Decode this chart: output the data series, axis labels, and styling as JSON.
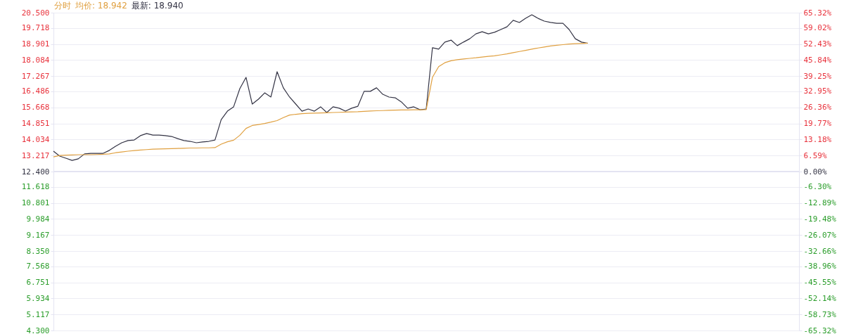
{
  "chart_data": {
    "type": "line",
    "title": "分时",
    "annotations": [
      "均价: 18.942",
      "最新: 18.940"
    ],
    "categories": [
      null,
      null,
      null,
      null,
      null,
      null,
      null,
      null,
      null,
      null,
      null,
      null,
      null,
      null,
      null,
      null,
      null,
      null,
      null,
      null,
      null,
      null,
      null,
      null,
      null,
      null,
      null,
      null,
      null,
      null,
      null,
      null,
      null,
      null,
      null,
      null,
      null,
      null,
      null,
      null,
      null,
      null,
      null,
      null,
      null,
      null,
      null,
      null,
      null,
      null,
      null,
      null,
      null,
      null,
      null,
      null,
      null,
      null,
      null,
      null,
      null,
      null,
      null,
      null,
      null,
      null,
      null,
      null,
      null,
      null,
      null,
      null,
      null,
      null,
      null,
      null,
      null,
      null,
      null,
      null,
      null,
      null,
      null,
      null,
      null,
      null,
      null,
      null,
      null,
      null,
      null,
      null,
      null,
      null,
      null,
      null,
      null,
      null,
      null,
      null,
      null,
      null,
      null,
      null,
      null,
      null,
      null,
      null,
      null,
      null,
      null,
      null,
      null,
      null,
      null,
      null,
      null,
      null,
      null,
      null,
      null
    ],
    "series": [
      {
        "color": "#333344",
        "values": [
          13.44,
          13.19,
          13.08,
          12.97,
          13.05,
          13.3,
          13.33,
          13.33,
          13.33,
          13.48,
          13.69,
          13.87,
          13.98,
          14.01,
          14.23,
          14.34,
          14.26,
          14.26,
          14.23,
          14.19,
          14.08,
          13.98,
          13.94,
          13.87,
          13.91,
          13.94,
          14.01,
          15.05,
          15.48,
          15.7,
          16.63,
          17.2,
          15.84,
          16.09,
          16.41,
          16.2,
          17.49,
          16.67,
          16.2,
          15.84,
          15.48,
          15.59,
          15.48,
          15.7,
          15.41,
          15.7,
          15.63,
          15.48,
          15.63,
          15.73,
          16.49,
          16.49,
          16.67,
          16.34,
          16.2,
          16.16,
          15.95,
          15.63,
          15.7,
          15.55,
          15.59,
          18.71,
          18.64,
          19.0,
          19.1,
          18.82,
          19.0,
          19.17,
          19.42,
          19.53,
          19.42,
          19.5,
          19.64,
          19.78,
          20.11,
          20.0,
          20.21,
          20.39,
          20.21,
          20.07,
          20.0,
          19.96,
          19.96,
          19.64,
          19.17,
          19.0,
          18.94,
          null,
          null,
          null,
          null,
          null,
          null,
          null,
          null,
          null,
          null,
          null,
          null,
          null,
          null,
          null,
          null,
          null,
          null,
          null,
          null,
          null,
          null,
          null,
          null,
          null,
          null,
          null,
          null,
          null,
          null,
          null,
          null,
          null,
          null
        ]
      },
      {
        "color": "#e0a040",
        "values": [
          13.15,
          13.22,
          13.24,
          13.25,
          13.26,
          13.26,
          13.26,
          13.27,
          13.28,
          13.3,
          13.36,
          13.4,
          13.44,
          13.47,
          13.5,
          13.52,
          13.54,
          13.55,
          13.56,
          13.57,
          13.58,
          13.59,
          13.6,
          13.6,
          13.61,
          13.61,
          13.62,
          13.8,
          13.92,
          14.0,
          14.25,
          14.6,
          14.75,
          14.8,
          14.85,
          14.92,
          15.0,
          15.15,
          15.28,
          15.32,
          15.35,
          15.37,
          15.38,
          15.39,
          15.4,
          15.41,
          15.42,
          15.43,
          15.44,
          15.45,
          15.47,
          15.49,
          15.5,
          15.51,
          15.52,
          15.53,
          15.54,
          15.54,
          15.55,
          15.55,
          15.56,
          17.2,
          17.75,
          17.95,
          18.05,
          18.1,
          18.14,
          18.17,
          18.2,
          18.24,
          18.27,
          18.3,
          18.35,
          18.4,
          18.46,
          18.52,
          18.58,
          18.64,
          18.7,
          18.75,
          18.8,
          18.84,
          18.87,
          18.9,
          18.92,
          18.93,
          18.942,
          null,
          null,
          null,
          null,
          null,
          null,
          null,
          null,
          null,
          null,
          null,
          null,
          null,
          null,
          null,
          null,
          null,
          null,
          null,
          null,
          null,
          null,
          null,
          null,
          null,
          null,
          null,
          null,
          null,
          null,
          null,
          null,
          null,
          null
        ]
      }
    ],
    "ylim": [
      4.3,
      20.5
    ],
    "yticks": [
      {
        "value": 4.3,
        "label": "4.300"
      },
      5.117,
      5.934,
      6.751,
      7.568,
      {
        "value": 8.35,
        "label": "8.350"
      },
      9.167,
      9.984,
      10.801,
      11.618,
      {
        "value": 12.4,
        "label": "12.400"
      },
      13.217,
      14.034,
      14.851,
      15.668,
      16.486,
      17.267,
      18.084,
      18.901,
      19.718,
      {
        "value": 20.5,
        "label": "20.500"
      }
    ],
    "y2lim": [
      -65.32,
      65.32
    ],
    "y2ticks": [
      {
        "value": -65.32,
        "label": "-65.32%"
      },
      {
        "value": -58.73,
        "label": "-58.73%"
      },
      {
        "value": -52.14,
        "label": "-52.14%"
      },
      {
        "value": -45.55,
        "label": "-45.55%"
      },
      {
        "value": -38.96,
        "label": "-38.96%"
      },
      {
        "value": -32.66,
        "label": "-32.66%"
      },
      {
        "value": -26.07,
        "label": "-26.07%"
      },
      {
        "value": -19.48,
        "label": "-19.48%"
      },
      {
        "value": -12.89,
        "label": "-12.89%"
      },
      {
        "value": -6.3,
        "label": "-6.30%"
      },
      {
        "value": 0,
        "label": "0.00%"
      },
      {
        "value": 6.59,
        "label": "6.59%"
      },
      {
        "value": 13.18,
        "label": "13.18%"
      },
      {
        "value": 19.77,
        "label": "19.77%"
      },
      {
        "value": 26.36,
        "label": "26.36%"
      },
      {
        "value": 32.95,
        "label": "32.95%"
      },
      {
        "value": 39.25,
        "label": "39.25%"
      },
      {
        "value": 45.84,
        "label": "45.84%"
      },
      {
        "value": 52.43,
        "label": "52.43%"
      },
      {
        "value": 59.02,
        "label": "59.02%"
      },
      {
        "value": 65.32,
        "label": "65.32%"
      }
    ],
    "ref_lines": [
      {
        "axis": "y2",
        "value": 0,
        "color": "#e4e4f2"
      }
    ],
    "grid": true,
    "marker": "none",
    "line_style": "solid"
  }
}
